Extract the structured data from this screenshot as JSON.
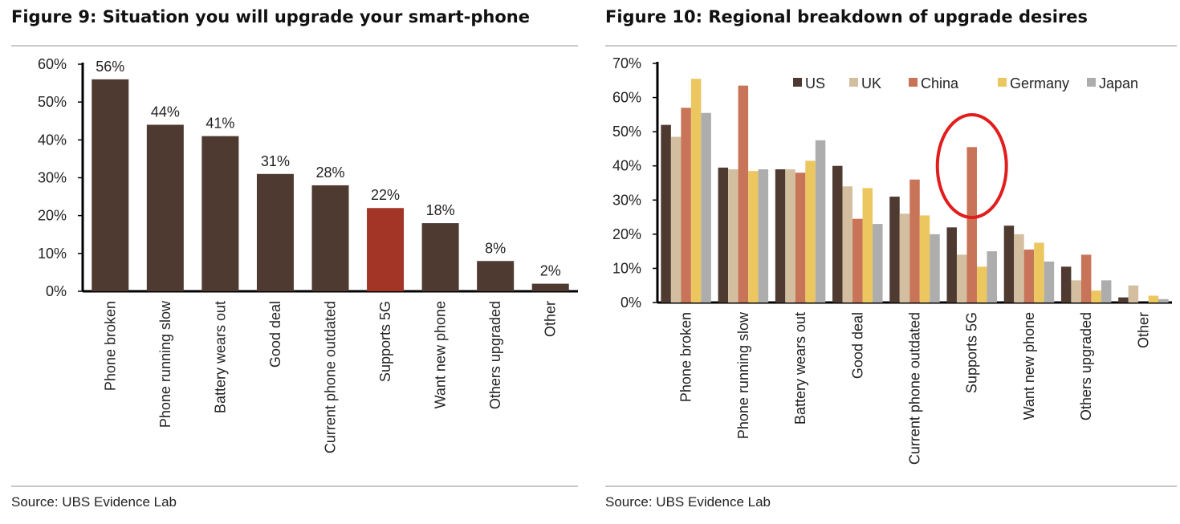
{
  "chart_data": [
    {
      "type": "bar",
      "title": "Figure 9: Situation you will upgrade your smart-phone",
      "source": "Source:  UBS Evidence Lab",
      "categories": [
        "Phone broken",
        "Phone running slow",
        "Battery wears out",
        "Good deal",
        "Current phone outdated",
        "Supports 5G",
        "Want new phone",
        "Others upgraded",
        "Other"
      ],
      "values": [
        56,
        44,
        41,
        31,
        28,
        22,
        18,
        8,
        2
      ],
      "data_labels": [
        "56%",
        "44%",
        "41%",
        "31%",
        "28%",
        "22%",
        "18%",
        "8%",
        "2%"
      ],
      "highlight_category": "Supports 5G",
      "colors": {
        "bar": "#4e3a30",
        "highlight": "#a23526"
      },
      "ylim": [
        0,
        60
      ],
      "yticks": [
        "0%",
        "10%",
        "20%",
        "30%",
        "40%",
        "50%",
        "60%"
      ],
      "grid": false,
      "xlabel": "",
      "ylabel": ""
    },
    {
      "type": "bar",
      "title": "Figure 10: Regional breakdown of upgrade desires",
      "source": "Source:  UBS Evidence Lab",
      "categories": [
        "Phone broken",
        "Phone running slow",
        "Battery wears out",
        "Good deal",
        "Current phone outdated",
        "Supports 5G",
        "Want new phone",
        "Others upgraded",
        "Other"
      ],
      "series": [
        {
          "name": "US",
          "color": "#4e3a30",
          "values": [
            52,
            39.5,
            39,
            40,
            31,
            22,
            22.5,
            10.5,
            1.5
          ]
        },
        {
          "name": "UK",
          "color": "#d3bfa0",
          "values": [
            48.5,
            39,
            39,
            34,
            26,
            14,
            20,
            6.5,
            5
          ]
        },
        {
          "name": "China",
          "color": "#c87458",
          "values": [
            57,
            63.5,
            38,
            24.5,
            36,
            45.5,
            15.5,
            14,
            0
          ]
        },
        {
          "name": "Germany",
          "color": "#ecc760",
          "values": [
            65.5,
            38.5,
            41.5,
            33.5,
            25.5,
            10.5,
            17.5,
            3.5,
            2
          ]
        },
        {
          "name": "Japan",
          "color": "#adadad",
          "values": [
            55.5,
            39,
            47.5,
            23,
            20,
            15,
            12,
            6.5,
            1
          ]
        }
      ],
      "annotation": {
        "shape": "ellipse",
        "color": "#e11d1d",
        "target_category": "Supports 5G",
        "target_series": "China"
      },
      "ylim": [
        0,
        70
      ],
      "yticks": [
        "0%",
        "10%",
        "20%",
        "30%",
        "40%",
        "50%",
        "60%",
        "70%"
      ],
      "grid": false,
      "legend": "top-right",
      "xlabel": "",
      "ylabel": ""
    }
  ]
}
